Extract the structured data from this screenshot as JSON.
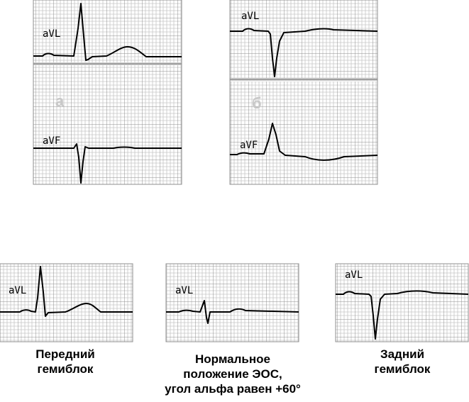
{
  "top_panels": {
    "a": {
      "letter": "а",
      "upper_lead": "aVL",
      "lower_lead": "aVF"
    },
    "b": {
      "letter": "б",
      "upper_lead": "aVL",
      "lower_lead": "aVF"
    }
  },
  "bottom_panels": {
    "anterior": {
      "lead": "aVL",
      "caption_line1": "Передний",
      "caption_line2": "гемиблок"
    },
    "normal": {
      "lead": "aVL",
      "caption_line1": "Нормальное",
      "caption_line2": "положение ЭОС,",
      "caption_line3": "угол альфа равен +60°"
    },
    "posterior": {
      "lead": "aVL",
      "caption_line1": "Задний",
      "caption_line2": "гемиблок"
    }
  },
  "colors": {
    "grid_minor": "#c7c7c7",
    "grid_major": "#8f8f8f",
    "trace": "#000000",
    "separator": "#a0a0a0"
  }
}
